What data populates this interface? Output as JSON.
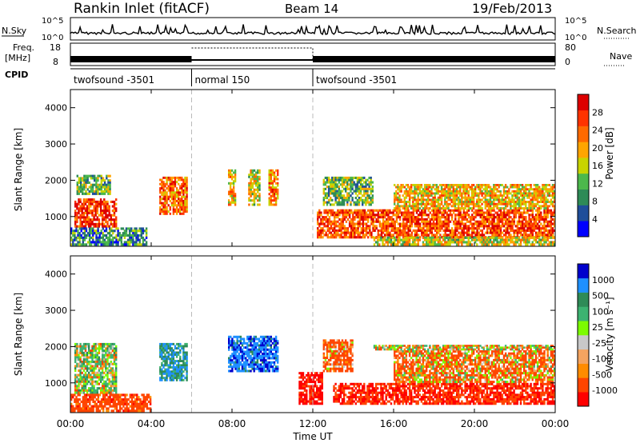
{
  "header": {
    "station": "Rankin Inlet (fitACF)",
    "beam": "Beam 14",
    "date": "19/Feb/2013"
  },
  "noise_panel": {
    "left_label": "N.Sky",
    "right_label": "N.Search",
    "left_ticks": [
      "10^5",
      "10^0"
    ],
    "right_ticks": [
      "10^5",
      "10^0"
    ]
  },
  "freq_panel": {
    "left_label_top": "Freq.",
    "left_label_bottom": "[MHz]",
    "right_label": "Nave",
    "left_ticks": [
      "18",
      "8"
    ],
    "right_ticks": [
      "80",
      "0"
    ]
  },
  "cpid_panel": {
    "label": "CPID",
    "segments": [
      {
        "name": "twofsound -3501",
        "start_hour": 0,
        "end_hour": 6
      },
      {
        "name": "normal 150",
        "start_hour": 6,
        "end_hour": 12
      },
      {
        "name": "twofsound -3501",
        "start_hour": 12,
        "end_hour": 24
      }
    ]
  },
  "x_axis": {
    "label": "Time UT",
    "ticks": [
      "00:00",
      "04:00",
      "08:00",
      "12:00",
      "16:00",
      "20:00",
      "00:00"
    ]
  },
  "colors": {
    "power": [
      "#0000ff",
      "#1f4e9a",
      "#2e8b57",
      "#4cb84c",
      "#c8d400",
      "#ffa500",
      "#ff6a00",
      "#ff3300",
      "#dd0000"
    ],
    "velocity": [
      "#ff0000",
      "#ff4500",
      "#ff8c00",
      "#f4a460",
      "#c8c8c8",
      "#7cfc00",
      "#3cb371",
      "#2e8b57",
      "#1e90ff",
      "#0000cd"
    ]
  },
  "chart_data": [
    {
      "type": "heatmap",
      "name": "power",
      "ylabel": "Slant Range [km]",
      "ylim": [
        180,
        4500
      ],
      "yticks": [
        1000,
        2000,
        3000,
        4000
      ],
      "colorbar_label": "Power [dB]",
      "colorbar_ticks": [
        "4",
        "8",
        "12",
        "16",
        "20",
        "24",
        "28"
      ],
      "colorbar_range": [
        0,
        30
      ],
      "xlim_hours": [
        0,
        24
      ],
      "regions": [
        {
          "t0": 0.2,
          "t1": 2.3,
          "r0": 700,
          "r1": 1500,
          "value": 26
        },
        {
          "t0": 0.3,
          "t1": 2.0,
          "r0": 1600,
          "r1": 2150,
          "value": 12
        },
        {
          "t0": 0.0,
          "t1": 3.8,
          "r0": 200,
          "r1": 700,
          "value": 8
        },
        {
          "t0": 4.4,
          "t1": 5.8,
          "r0": 1050,
          "r1": 2100,
          "value": 22
        },
        {
          "t0": 7.8,
          "t1": 8.2,
          "r0": 1300,
          "r1": 2300,
          "value": 18
        },
        {
          "t0": 8.8,
          "t1": 9.4,
          "r0": 1300,
          "r1": 2300,
          "value": 16
        },
        {
          "t0": 9.8,
          "t1": 10.3,
          "r0": 1300,
          "r1": 2300,
          "value": 20
        },
        {
          "t0": 12.5,
          "t1": 15.0,
          "r0": 1300,
          "r1": 2100,
          "value": 12
        },
        {
          "t0": 12.2,
          "t1": 24.0,
          "r0": 400,
          "r1": 1200,
          "value": 24
        },
        {
          "t0": 16.0,
          "t1": 24.0,
          "r0": 1200,
          "r1": 1900,
          "value": 18
        },
        {
          "t0": 15.0,
          "t1": 24.0,
          "r0": 200,
          "r1": 450,
          "value": 16
        }
      ]
    },
    {
      "type": "heatmap",
      "name": "velocity",
      "ylabel": "Slant Range [km]",
      "ylim": [
        180,
        4500
      ],
      "yticks": [
        1000,
        2000,
        3000,
        4000
      ],
      "colorbar_label": "Velocity [m s⁻¹]",
      "colorbar_ticks": [
        "-1000",
        "-500",
        "-100",
        "-25",
        "25",
        "100",
        "500",
        "1000"
      ],
      "colorbar_range": [
        -1000,
        1000
      ],
      "xlim_hours": [
        0,
        24
      ],
      "regions": [
        {
          "t0": 0.2,
          "t1": 2.3,
          "r0": 700,
          "r1": 2100,
          "value": 120
        },
        {
          "t0": 0.0,
          "t1": 4.0,
          "r0": 200,
          "r1": 700,
          "value": -300
        },
        {
          "t0": 4.4,
          "t1": 5.8,
          "r0": 1050,
          "r1": 2100,
          "value": 450
        },
        {
          "t0": 7.8,
          "t1": 10.3,
          "r0": 1300,
          "r1": 2300,
          "value": 700
        },
        {
          "t0": 11.3,
          "t1": 12.5,
          "r0": 400,
          "r1": 1300,
          "value": -600
        },
        {
          "t0": 12.5,
          "t1": 14.0,
          "r0": 1300,
          "r1": 2200,
          "value": -200
        },
        {
          "t0": 13.0,
          "t1": 24.0,
          "r0": 400,
          "r1": 1000,
          "value": -500
        },
        {
          "t0": 16.0,
          "t1": 24.0,
          "r0": 1000,
          "r1": 1900,
          "value": -120
        },
        {
          "t0": 15.0,
          "t1": 24.0,
          "r0": 1900,
          "r1": 2050,
          "value": 0
        }
      ]
    }
  ]
}
